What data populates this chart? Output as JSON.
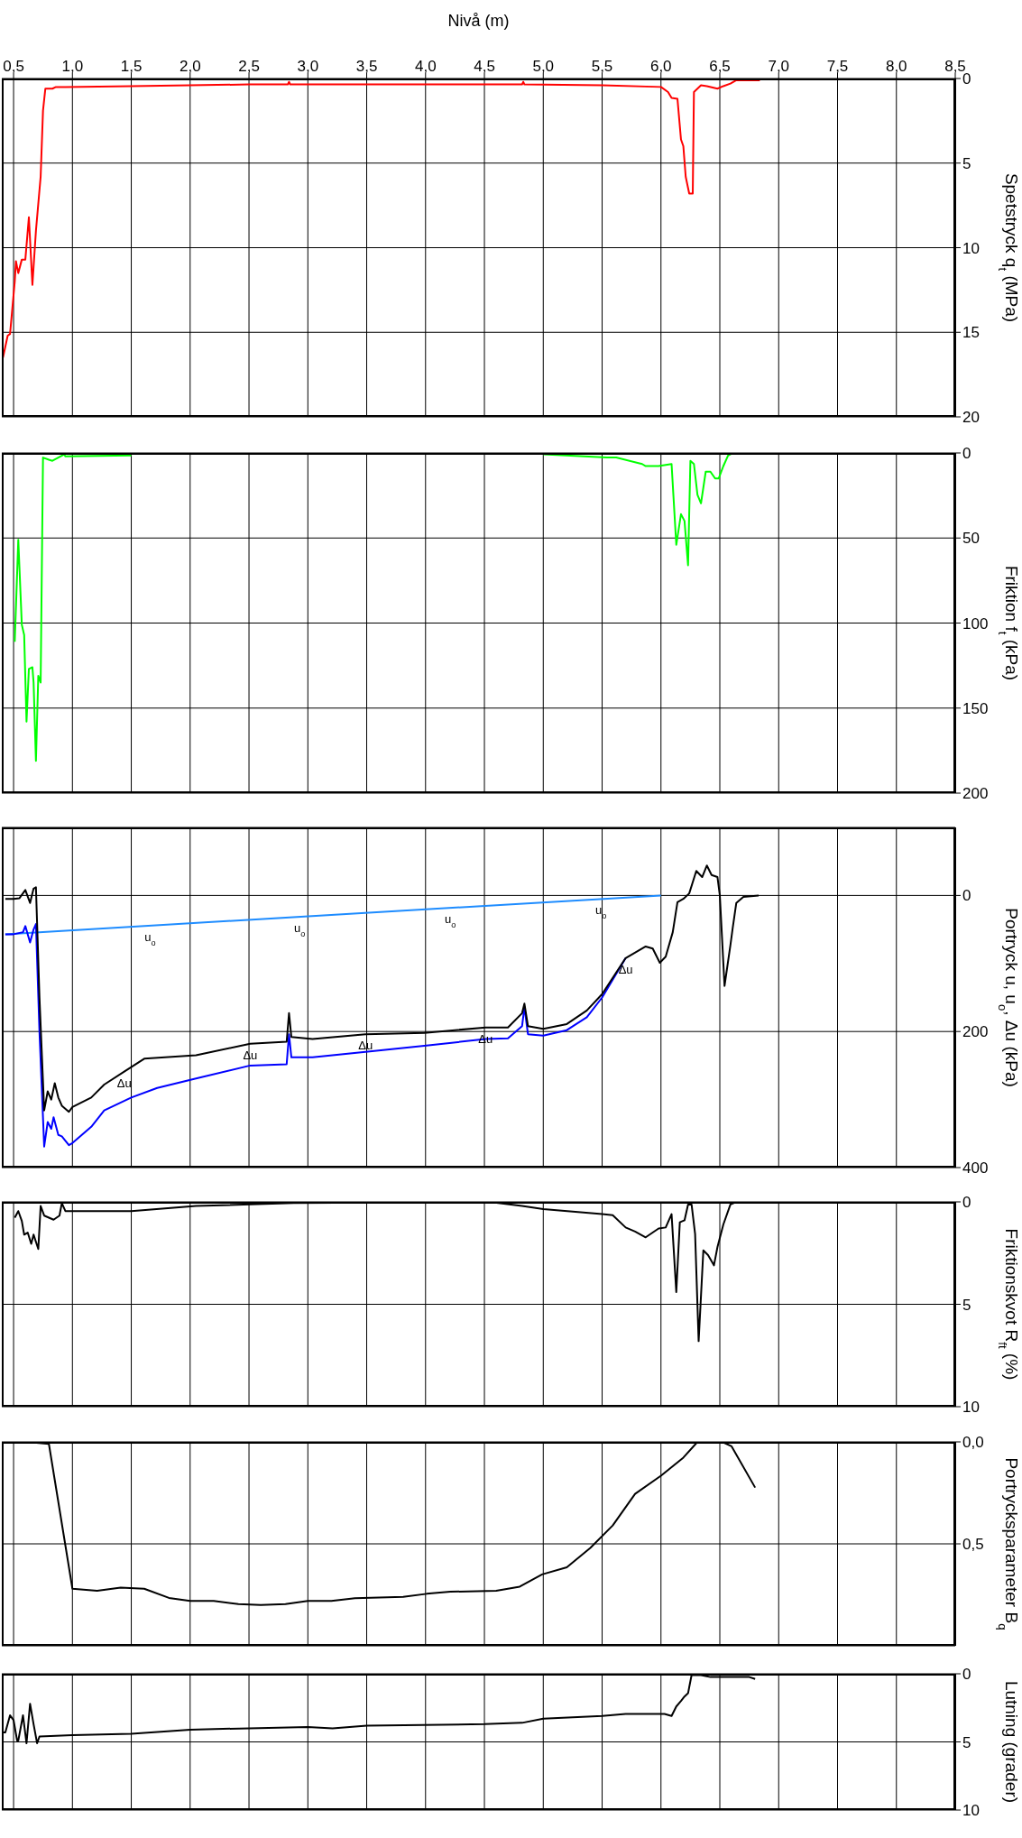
{
  "chart_data": [
    {
      "type": "line",
      "xlabel": "Nivå (m)",
      "ylabel": "Spetstryck q$_{t}$  (MPa)",
      "xlim": [
        0.4,
        8.5
      ],
      "xticks": [
        {
          "value": 0.5,
          "label": "0,5"
        },
        {
          "value": 1,
          "label": "1,0"
        },
        {
          "value": 1.5,
          "label": "1,5"
        },
        {
          "value": 2,
          "label": "2,0"
        },
        {
          "value": 2.5,
          "label": "2,5"
        },
        {
          "value": 3,
          "label": "3,0"
        },
        {
          "value": 3.5,
          "label": "3,5"
        },
        {
          "value": 4,
          "label": "4,0"
        },
        {
          "value": 4.5,
          "label": "4,5"
        },
        {
          "value": 5,
          "label": "5,0"
        },
        {
          "value": 5.5,
          "label": "5,5"
        },
        {
          "value": 6,
          "label": "6,0"
        },
        {
          "value": 6.5,
          "label": "6,5"
        },
        {
          "value": 7,
          "label": "7,0"
        },
        {
          "value": 7.5,
          "label": "7,5"
        },
        {
          "value": 8,
          "label": "8,0"
        },
        {
          "value": 8.5,
          "label": "8,5"
        }
      ],
      "ylim": [
        20,
        0
      ],
      "yticks": [
        0,
        5,
        10,
        15,
        20
      ],
      "grid": true,
      "series": [
        {
          "color": "#ff0000",
          "x": [
            0.41,
            0.45,
            0.47,
            0.51,
            0.52,
            0.54,
            0.57,
            0.6,
            0.63,
            0.66,
            0.69,
            0.73,
            0.75,
            0.77,
            0.83,
            0.86,
            0.94,
            1.5,
            2.0,
            2.5,
            2.83,
            2.84,
            2.85,
            4.0,
            4.82,
            4.83,
            4.84,
            5.5,
            6.0,
            6.06,
            6.09,
            6.14,
            6.17,
            6.19,
            6.21,
            6.24,
            6.27,
            6.28,
            6.34,
            6.39,
            6.48,
            6.53,
            6.59,
            6.64,
            6.84
          ],
          "values": [
            16.5,
            15.2,
            15.1,
            12.0,
            10.8,
            11.5,
            10.7,
            10.7,
            8.2,
            12.2,
            9.0,
            5.8,
            1.9,
            0.6,
            0.6,
            0.5,
            0.5,
            0.45,
            0.4,
            0.35,
            0.35,
            0.2,
            0.35,
            0.35,
            0.35,
            0.2,
            0.35,
            0.4,
            0.5,
            0.8,
            1.15,
            1.2,
            3.6,
            4.0,
            5.8,
            6.8,
            6.8,
            0.8,
            0.4,
            0.45,
            0.6,
            0.45,
            0.3,
            0.1,
            0.1
          ]
        }
      ]
    },
    {
      "type": "line",
      "ylabel": "Friktion f$_{t}$  (kPa)",
      "xlim": [
        0.4,
        8.5
      ],
      "xticks": [
        0.5,
        1,
        1.5,
        2,
        2.5,
        3,
        3.5,
        4,
        4.5,
        5,
        5.5,
        6,
        6.5,
        7,
        7.5,
        8,
        8.5
      ],
      "ylim": [
        200,
        0
      ],
      "yticks": [
        0,
        50,
        100,
        150,
        200
      ],
      "grid": true,
      "tick_labels": "y",
      "series": [
        {
          "color": "#00ff00",
          "x": [
            0.51,
            0.54,
            0.57,
            0.59,
            0.61,
            0.63,
            0.66,
            0.67,
            0.69,
            0.71,
            0.73,
            0.75,
            0.8,
            0.83,
            0.93,
            0.94,
            1.5,
            2.0,
            3.0,
            4.0,
            5.0,
            5.54,
            5.62,
            5.84,
            5.87,
            5.98,
            6.09,
            6.13,
            6.17,
            6.2,
            6.23,
            6.25,
            6.28,
            6.31,
            6.34,
            6.38,
            6.42,
            6.46,
            6.49,
            6.53,
            6.57,
            6.61
          ],
          "values": [
            111,
            51,
            101,
            107,
            158,
            127,
            126,
            135,
            181,
            131,
            135,
            2.7,
            4,
            4.6,
            0.8,
            2,
            1.5,
            null,
            null,
            null,
            0.8,
            2.7,
            2.7,
            6.5,
            7.7,
            7.7,
            6.5,
            54,
            36,
            40,
            66,
            4.6,
            6.5,
            24.6,
            29.6,
            11,
            11,
            15,
            15,
            7.7,
            1.5,
            0
          ]
        }
      ]
    },
    {
      "type": "line",
      "ylabel": "Portryck u, u$_{o}$, Δu  (kPa)",
      "xlim": [
        0.4,
        8.5
      ],
      "xticks": [
        0.5,
        1,
        1.5,
        2,
        2.5,
        3,
        3.5,
        4,
        4.5,
        5,
        5.5,
        6,
        6.5,
        7,
        7.5,
        8,
        8.5
      ],
      "ylim": [
        400,
        -100
      ],
      "yticks": [
        0,
        200,
        400
      ],
      "grid": true,
      "tick_labels": "y",
      "annotations": [
        {
          "text": "u$_{o}$",
          "x": 1.66,
          "y": 44.4
        },
        {
          "text": "u$_{o}$",
          "x": 2.93,
          "y": 31.4
        },
        {
          "text": "u$_{o}$",
          "x": 4.21,
          "y": 18.3
        },
        {
          "text": "u$_{o}$",
          "x": 5.49,
          "y": 5.2
        },
        {
          "text": "Δu",
          "x": 1.44,
          "y": 259
        },
        {
          "text": "Δu",
          "x": 2.51,
          "y": 218
        },
        {
          "text": "Δu",
          "x": 3.49,
          "y": 204
        },
        {
          "text": "Δu",
          "x": 4.51,
          "y": 194
        },
        {
          "text": "Δu",
          "x": 5.7,
          "y": 92
        }
      ],
      "series": [
        {
          "color": "#1e8cff",
          "x": [
            0.43,
            6.0
          ],
          "values": [
            57,
            0
          ]
        },
        {
          "color": "#0000ff",
          "x": [
            0.43,
            0.5,
            0.58,
            0.6,
            0.64,
            0.67,
            0.69,
            0.72,
            0.76,
            0.79,
            0.82,
            0.84,
            0.88,
            0.91,
            0.97,
            1.0,
            1.16,
            1.27,
            1.5,
            1.72,
            2.05,
            2.51,
            2.82,
            2.84,
            2.86,
            3.04,
            3.49,
            3.99,
            4.51,
            4.7,
            4.82,
            4.84,
            4.87,
            5.0,
            5.2,
            5.37,
            5.5,
            5.7
          ],
          "values": [
            57,
            57,
            54,
            45,
            69,
            50,
            42,
            200,
            369,
            333,
            343,
            326,
            352,
            354,
            367,
            364,
            340,
            316,
            297,
            283,
            269,
            250,
            248,
            204,
            238,
            238,
            230,
            221,
            211,
            210,
            192,
            164,
            204,
            206,
            198,
            179,
            150,
            92
          ]
        },
        {
          "color": "#000000",
          "x": [
            0.43,
            0.5,
            0.55,
            0.6,
            0.64,
            0.67,
            0.69,
            0.72,
            0.76,
            0.79,
            0.82,
            0.85,
            0.88,
            0.91,
            0.97,
            1.0,
            1.16,
            1.27,
            1.44,
            1.61,
            2.05,
            2.51,
            2.82,
            2.84,
            2.86,
            3.04,
            3.49,
            3.99,
            4.51,
            4.7,
            4.82,
            4.84,
            4.87,
            5.0,
            5.2,
            5.37,
            5.5,
            5.7,
            5.87,
            5.93,
            5.99,
            6.04,
            6.1,
            6.14,
            6.19,
            6.24,
            6.3,
            6.35,
            6.39,
            6.43,
            6.48,
            6.5,
            6.54,
            6.59,
            6.61,
            6.64,
            6.7,
            6.83
          ],
          "values": [
            5,
            5,
            4,
            -8,
            11,
            -10,
            -12,
            150,
            316,
            288,
            300,
            276,
            297,
            309,
            318,
            311,
            297,
            278,
            259,
            240,
            235,
            218,
            215,
            173,
            208,
            211,
            204,
            202,
            194,
            194,
            173,
            159,
            192,
            196,
            189,
            169,
            145,
            92,
            75,
            78,
            99,
            90,
            54,
            10,
            5,
            -3,
            -36,
            -27,
            -44,
            -30,
            -27,
            0,
            133,
            73,
            47,
            11,
            2,
            0
          ]
        }
      ]
    },
    {
      "type": "line",
      "ylabel": "Friktionskvot R$_{ft}$  (%)",
      "xlim": [
        0.4,
        8.5
      ],
      "xticks": [
        0.5,
        1,
        1.5,
        2,
        2.5,
        3,
        3.5,
        4,
        4.5,
        5,
        5.5,
        6,
        6.5,
        7,
        7.5,
        8,
        8.5
      ],
      "ylim": [
        10,
        0
      ],
      "yticks": [
        0,
        5,
        10
      ],
      "grid": true,
      "tick_labels": "y",
      "series": [
        {
          "color": "#000000",
          "x": [
            0.51,
            0.54,
            0.57,
            0.59,
            0.62,
            0.65,
            0.67,
            0.71,
            0.73,
            0.76,
            0.8,
            0.84,
            0.89,
            0.91,
            0.94,
            1.5,
            2.05,
            2.88,
            4.54,
            4.82,
            5.0,
            5.5,
            5.59,
            5.7,
            5.78,
            5.87,
            5.98,
            6.04,
            6.09,
            6.13,
            6.16,
            6.2,
            6.23,
            6.26,
            6.29,
            6.32,
            6.36,
            6.4,
            6.45,
            6.48,
            6.53,
            6.59,
            6.64,
            6.83
          ],
          "values": [
            0.77,
            0.45,
            0.93,
            1.6,
            1.5,
            2.05,
            1.6,
            2.3,
            0.2,
            0.67,
            0.77,
            0.87,
            0.67,
            0.06,
            0.45,
            0.45,
            0.2,
            0.06,
            0,
            0.2,
            0.35,
            0.6,
            0.65,
            1.25,
            1.45,
            1.73,
            1.3,
            1.25,
            0.6,
            4.4,
            1.0,
            0.9,
            0.13,
            0.13,
            1.57,
            6.8,
            2.37,
            2.6,
            3.1,
            2.2,
            1.1,
            0.13,
            0,
            0
          ]
        }
      ]
    },
    {
      "type": "line",
      "ylabel": "Portrycksparameter B$_{q}$",
      "xlim": [
        0.4,
        8.5
      ],
      "xticks": [
        0.5,
        1,
        1.5,
        2,
        2.5,
        3,
        3.5,
        4,
        4.5,
        5,
        5.5,
        6,
        6.5,
        7,
        7.5,
        8,
        8.5
      ],
      "ylim": [
        1.0,
        0.0
      ],
      "yticks": [
        {
          "value": 0,
          "label": "0,0"
        },
        {
          "value": 0.5,
          "label": "0,5"
        }
      ],
      "grid": true,
      "tick_labels": "y",
      "series": [
        {
          "color": "#000000",
          "x": [
            0.61,
            0.8,
            1.0,
            1.21,
            1.41,
            1.61,
            1.82,
            2.0,
            2.2,
            2.41,
            2.6,
            2.81,
            3.0,
            3.2,
            3.4,
            3.81,
            4.01,
            4.21,
            4.6,
            4.8,
            4.99,
            5.2,
            5.4,
            5.59,
            5.78,
            6.0,
            6.19,
            6.31,
            6.52,
            6.6,
            6.8
          ],
          "values": [
            0,
            0.01,
            0.72,
            0.73,
            0.715,
            0.72,
            0.765,
            0.78,
            0.78,
            0.795,
            0.8,
            0.795,
            0.78,
            0.78,
            0.767,
            0.76,
            0.745,
            0.735,
            0.73,
            0.71,
            0.65,
            0.615,
            0.52,
            0.41,
            0.255,
            0.166,
            0.077,
            0,
            0,
            0.022,
            0.224
          ]
        }
      ]
    },
    {
      "type": "line",
      "ylabel": "Lutning (grader)",
      "xlim": [
        0.4,
        8.5
      ],
      "xticks": [
        0.5,
        1,
        1.5,
        2,
        2.5,
        3,
        3.5,
        4,
        4.5,
        5,
        5.5,
        6,
        6.5,
        7,
        7.5,
        8,
        8.5
      ],
      "ylim": [
        10,
        0
      ],
      "yticks": [
        0,
        5,
        10
      ],
      "grid": true,
      "tick_labels": "y",
      "series": [
        {
          "color": "#000000",
          "x": [
            0.41,
            0.43,
            0.47,
            0.5,
            0.53,
            0.54,
            0.58,
            0.61,
            0.64,
            0.67,
            0.7,
            0.72,
            1.0,
            1.5,
            2.0,
            2.5,
            3.0,
            3.21,
            3.5,
            4.5,
            4.82,
            5.0,
            5.5,
            5.7,
            6.03,
            6.09,
            6.13,
            6.17,
            6.2,
            6.23,
            6.26,
            6.34,
            6.42,
            6.75,
            6.8
          ],
          "values": [
            4.3,
            4.3,
            3.05,
            3.4,
            4.9,
            4.9,
            3.05,
            5.1,
            2.2,
            3.7,
            5.1,
            4.6,
            4.5,
            4.4,
            4.1,
            4.0,
            3.9,
            4.0,
            3.8,
            3.7,
            3.6,
            3.3,
            3.1,
            2.95,
            2.95,
            3.1,
            2.4,
            2.0,
            1.67,
            1.43,
            0.1,
            0.1,
            0.24,
            0.24,
            0.38
          ]
        }
      ]
    }
  ]
}
